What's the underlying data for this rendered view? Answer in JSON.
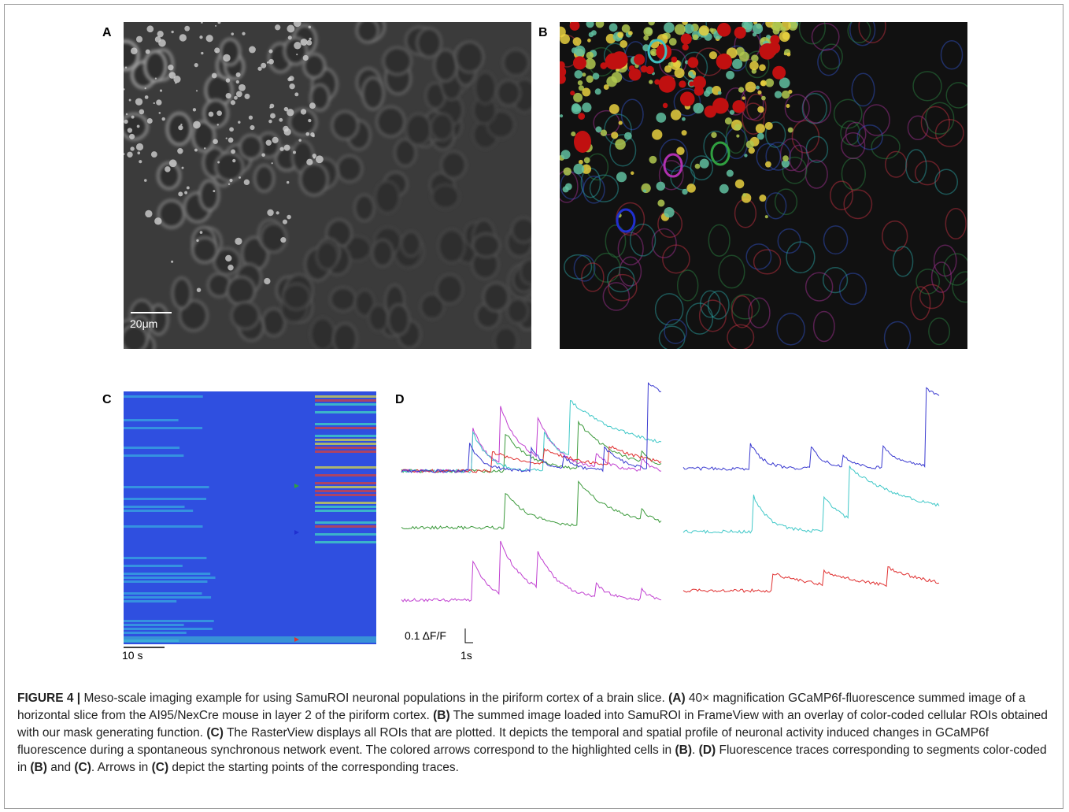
{
  "panels": [
    {
      "label": "A",
      "scale_bar": "20μm"
    },
    {
      "label": "B"
    },
    {
      "label": "C",
      "scale_bar": "10 s"
    },
    {
      "label": "D",
      "scale_bar_y": "0.1 ΔF/F",
      "scale_bar_x": "1s"
    }
  ],
  "caption": [
    {
      "text": "FIGURE 4 |",
      "bold": true
    },
    {
      "text": " Meso-scale imaging example for using SamuROI neuronal populations in the piriform cortex of a brain slice. ",
      "bold": false
    },
    {
      "text": "(A)",
      "bold": true
    },
    {
      "text": " 40× magnification GCaMP6f-fluorescence summed image of a horizontal slice from the AI95/NexCre mouse in layer 2 of the piriform cortex. ",
      "bold": false
    },
    {
      "text": "(B)",
      "bold": true
    },
    {
      "text": " The summed image loaded into SamuROI in FrameView with an overlay of color-coded cellular ROIs obtained with our mask generating function. ",
      "bold": false
    },
    {
      "text": "(C)",
      "bold": true
    },
    {
      "text": " The RasterView displays all ROIs that are plotted. It depicts the temporal and spatial profile of neuronal activity induced changes in GCaMP6f fluorescence during a spontaneous synchronous network event. The colored arrows correspond to the highlighted cells in ",
      "bold": false
    },
    {
      "text": "(B)",
      "bold": true
    },
    {
      "text": ". ",
      "bold": false
    },
    {
      "text": "(D)",
      "bold": true
    },
    {
      "text": " Fluorescence traces corresponding to segments color-coded in ",
      "bold": false
    },
    {
      "text": "(B)",
      "bold": true
    },
    {
      "text": " and ",
      "bold": false
    },
    {
      "text": "(C)",
      "bold": true
    },
    {
      "text": ". Arrows in ",
      "bold": false
    },
    {
      "text": "(C)",
      "bold": true
    },
    {
      "text": " depict the starting points of the corresponding traces.",
      "bold": false
    }
  ]
}
